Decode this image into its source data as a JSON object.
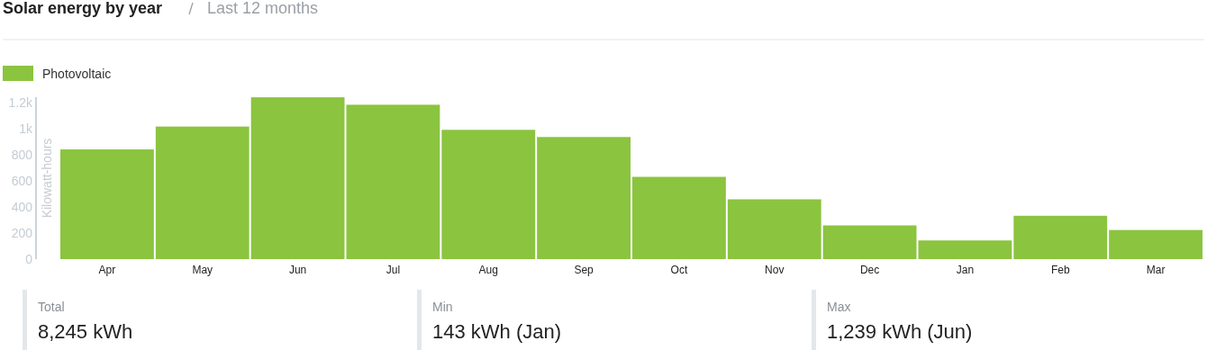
{
  "chart_data": {
    "type": "bar",
    "title": "Solar energy by year",
    "subtitle": "Last 12 months",
    "ylabel": "Kilowatt-hours",
    "categories": [
      "Apr",
      "May",
      "Jun",
      "Jul",
      "Aug",
      "Sep",
      "Oct",
      "Nov",
      "Dec",
      "Jan",
      "Feb",
      "Mar"
    ],
    "series": [
      {
        "name": "Photovoltaic",
        "color": "#8bc43f",
        "values": [
          840,
          1015,
          1239,
          1182,
          990,
          935,
          630,
          458,
          258,
          143,
          332,
          223
        ]
      }
    ],
    "ylim": [
      0,
      1240
    ],
    "yticks": [
      0,
      200,
      400,
      600,
      800,
      {
        "value": 1000,
        "label": "1k"
      },
      {
        "value": 1200,
        "label": "1.2k"
      }
    ],
    "grid": false,
    "legend": "top left",
    "annotations": [
      "Total",
      "8,245 kWh",
      "Min",
      "143 kWh (Jan)",
      "Max",
      "1,239 kWh (Jun)"
    ]
  }
}
